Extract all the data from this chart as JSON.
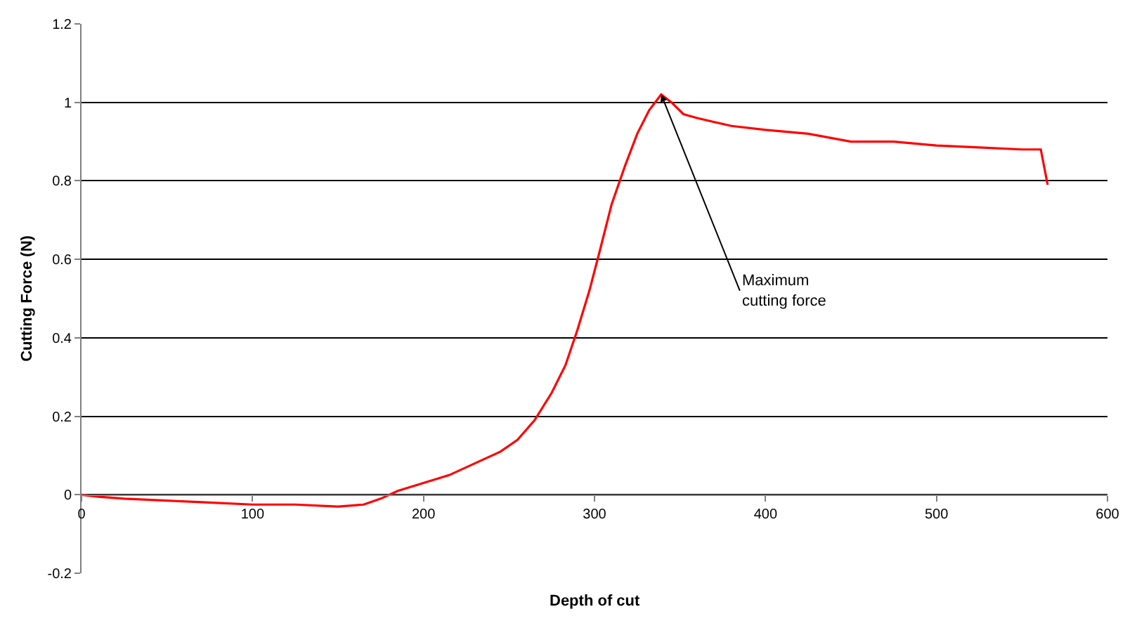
{
  "chart_data": {
    "type": "line",
    "xlabel": "Depth of cut",
    "ylabel": "Cutting Force (N)",
    "xlim": [
      0,
      600
    ],
    "xticks": [
      0,
      100,
      200,
      300,
      400,
      500,
      600
    ],
    "ylim": [
      -0.2,
      1.2
    ],
    "yticks": [
      -0.2,
      0,
      0.2,
      0.4,
      0.6,
      0.8,
      1,
      1.2
    ],
    "grid": "y",
    "marker": "none",
    "line_style": "solid",
    "annotations": [
      {
        "text": "Maximum\ncutting force",
        "x": 339,
        "y": 1.02
      }
    ],
    "series": [
      {
        "color": "#ff0000",
        "x": [
          0,
          10,
          25,
          50,
          75,
          100,
          125,
          150,
          165,
          175,
          185,
          200,
          215,
          230,
          245,
          255,
          265,
          275,
          283,
          290,
          297,
          303,
          310,
          318,
          325,
          332,
          339,
          345,
          352,
          360,
          380,
          400,
          425,
          450,
          475,
          500,
          525,
          550,
          561,
          565
        ],
        "values": [
          0.0,
          -0.005,
          -0.01,
          -0.015,
          -0.02,
          -0.025,
          -0.025,
          -0.03,
          -0.025,
          -0.01,
          0.01,
          0.03,
          0.05,
          0.08,
          0.11,
          0.14,
          0.19,
          0.26,
          0.33,
          0.42,
          0.52,
          0.62,
          0.74,
          0.84,
          0.92,
          0.98,
          1.02,
          1.0,
          0.97,
          0.96,
          0.94,
          0.93,
          0.92,
          0.9,
          0.9,
          0.89,
          0.885,
          0.88,
          0.88,
          0.79
        ]
      }
    ]
  }
}
